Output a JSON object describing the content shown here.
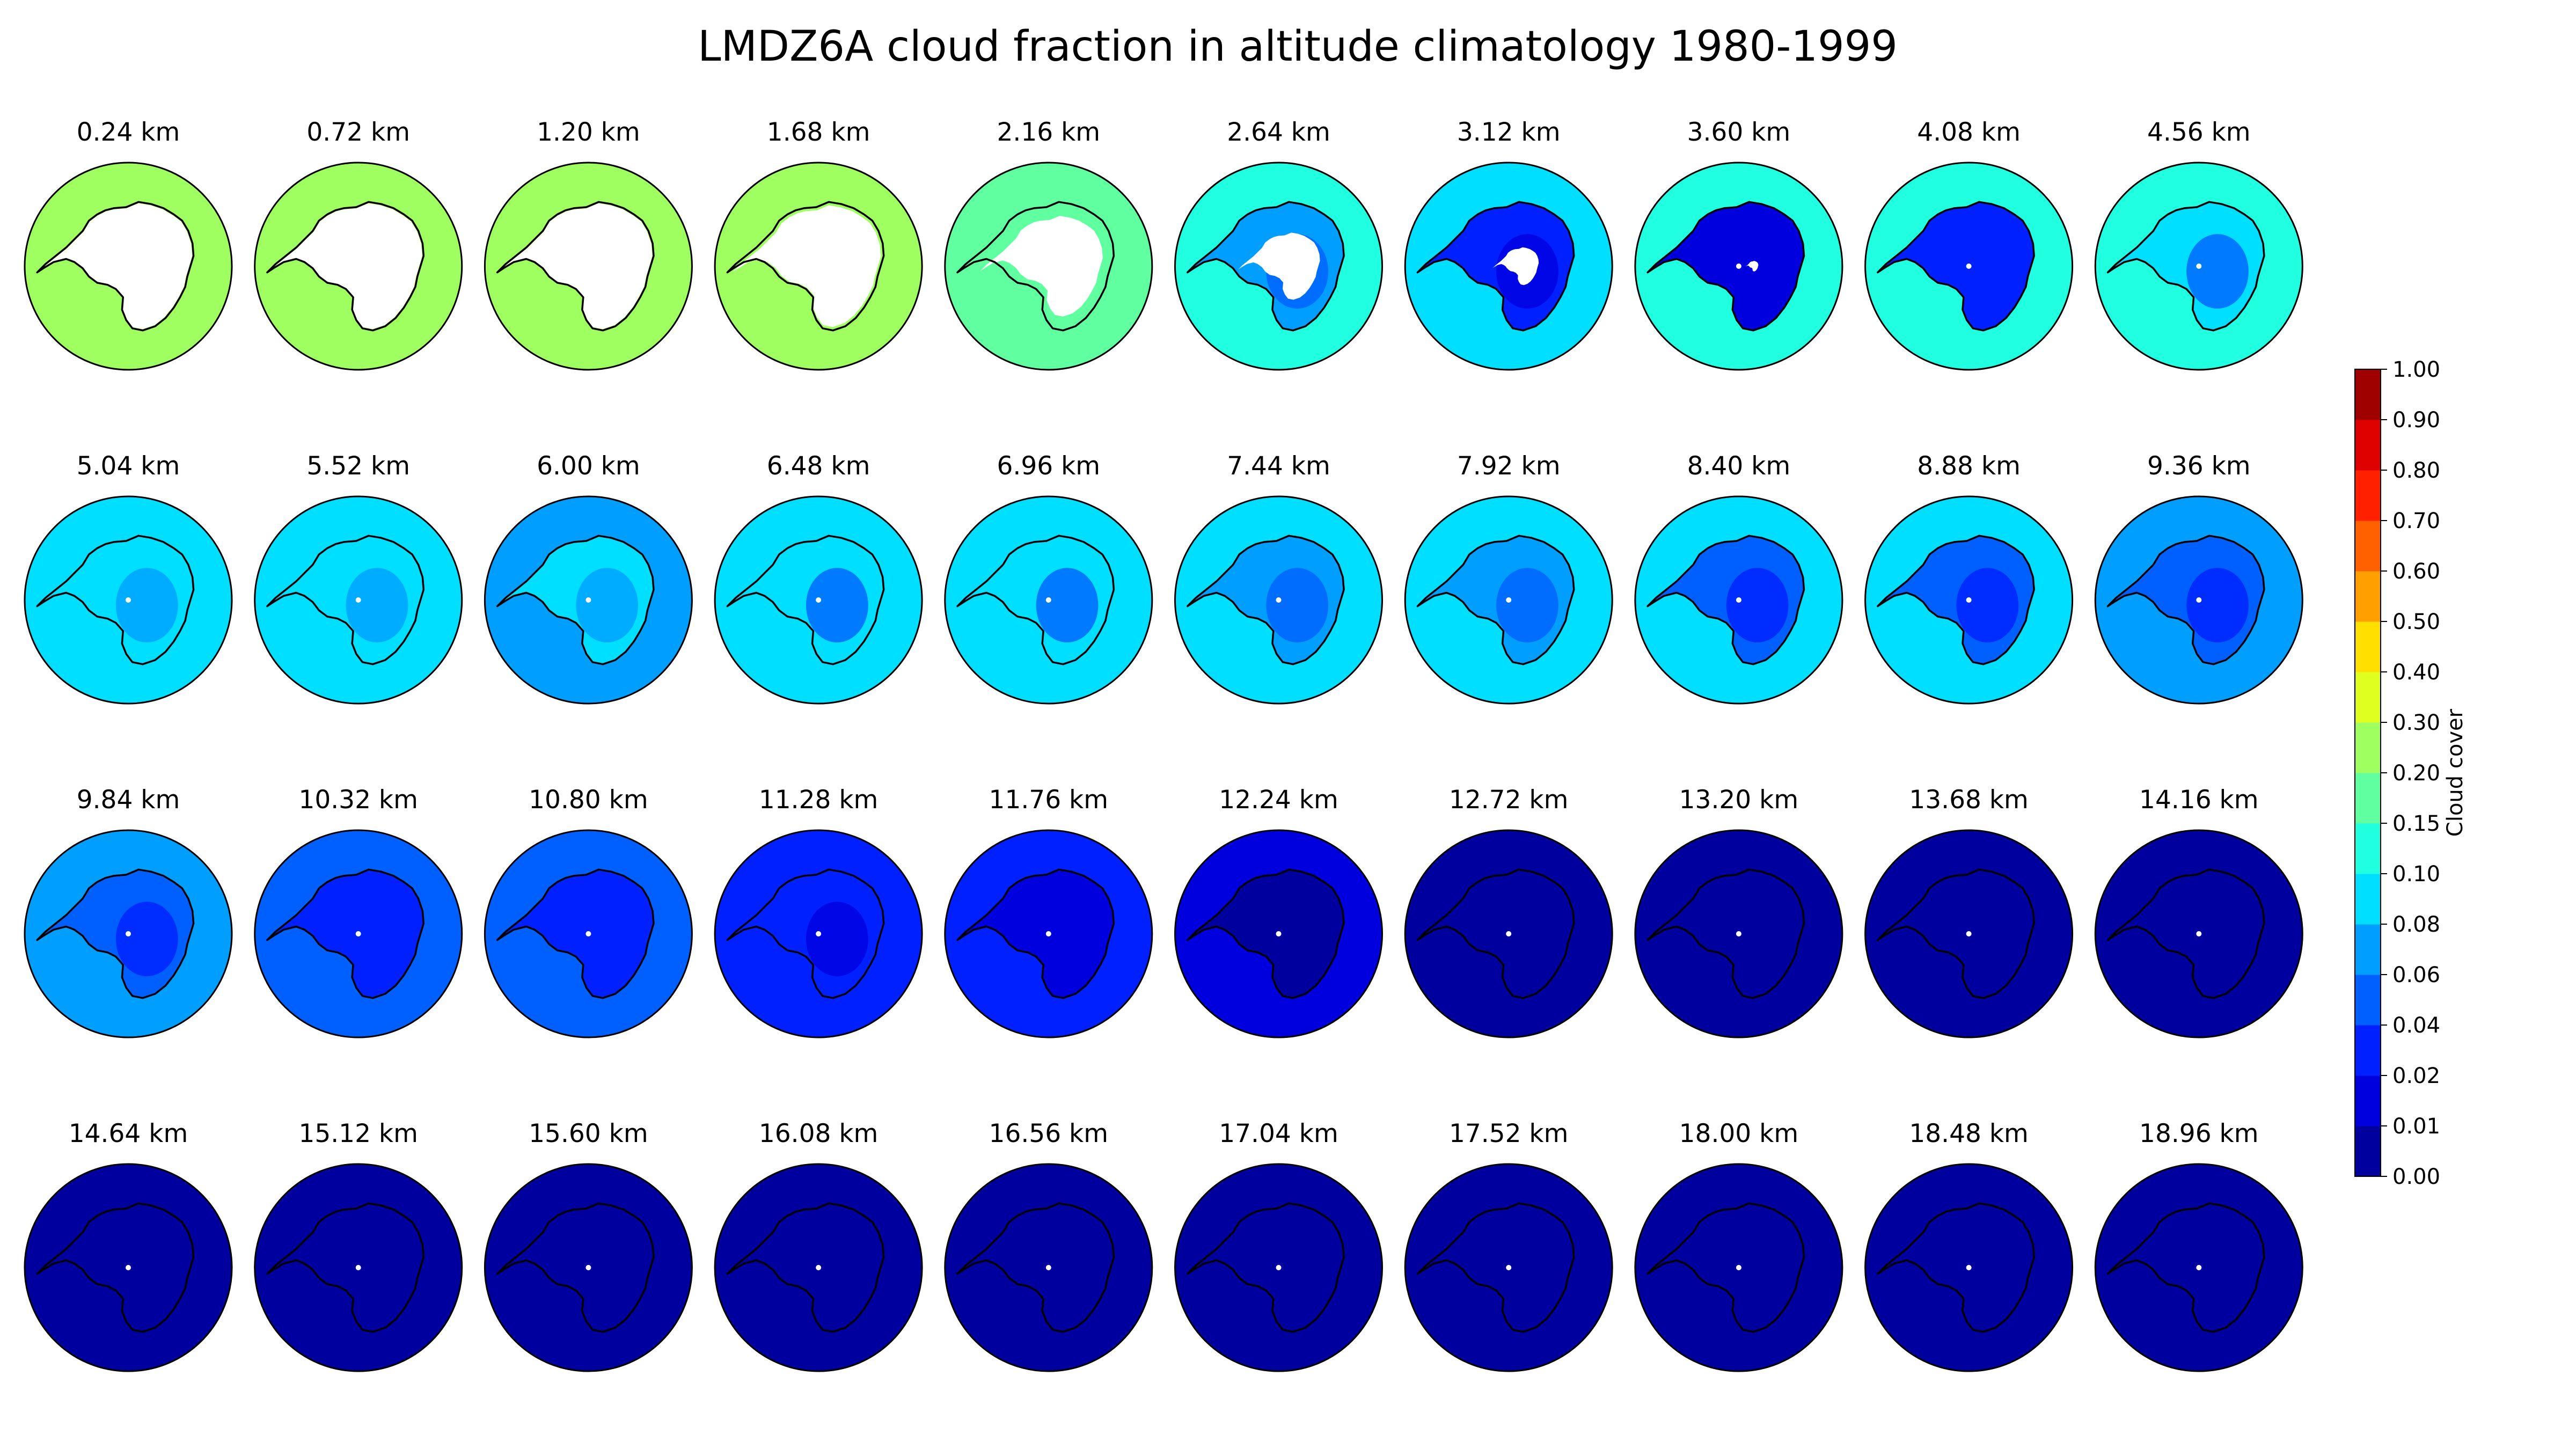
{
  "chart_data": {
    "type": "heatmap",
    "subtype": "south-polar-stereographic-map-panels",
    "title": "LMDZ6A cloud fraction in altitude climatology 1980-1999",
    "grid_rows": 4,
    "grid_cols": 10,
    "panels": [
      {
        "label": "0.24 km",
        "altitude_km": 0.24,
        "ocean_level": 0.22,
        "interior_level": null,
        "mask": 0.6
      },
      {
        "label": "0.72 km",
        "altitude_km": 0.72,
        "ocean_level": 0.28,
        "interior_level": null,
        "mask": 0.6
      },
      {
        "label": "1.20 km",
        "altitude_km": 1.2,
        "ocean_level": 0.27,
        "interior_level": null,
        "mask": 0.6
      },
      {
        "label": "1.68 km",
        "altitude_km": 1.68,
        "ocean_level": 0.25,
        "interior_level": null,
        "mask": 0.58
      },
      {
        "label": "2.16 km",
        "altitude_km": 2.16,
        "ocean_level": 0.18,
        "interior_level": null,
        "mask": 0.48
      },
      {
        "label": "2.64 km",
        "altitude_km": 2.64,
        "ocean_level": 0.11,
        "interior_level": 0.06,
        "mask": 0.32
      },
      {
        "label": "3.12 km",
        "altitude_km": 3.12,
        "ocean_level": 0.09,
        "interior_level": 0.02,
        "mask": 0.18
      },
      {
        "label": "3.60 km",
        "altitude_km": 3.6,
        "ocean_level": 0.1,
        "interior_level": 0.015,
        "mask": 0.05
      },
      {
        "label": "4.08 km",
        "altitude_km": 4.08,
        "ocean_level": 0.1,
        "interior_level": 0.03,
        "mask": 0
      },
      {
        "label": "4.56 km",
        "altitude_km": 4.56,
        "ocean_level": 0.1,
        "interior_level": 0.08,
        "mask": 0
      },
      {
        "label": "5.04 km",
        "altitude_km": 5.04,
        "ocean_level": 0.09,
        "interior_level": 0.09,
        "mask": 0
      },
      {
        "label": "5.52 km",
        "altitude_km": 5.52,
        "ocean_level": 0.08,
        "interior_level": 0.09,
        "mask": 0
      },
      {
        "label": "6.00 km",
        "altitude_km": 6.0,
        "ocean_level": 0.075,
        "interior_level": 0.09,
        "mask": 0
      },
      {
        "label": "6.48 km",
        "altitude_km": 6.48,
        "ocean_level": 0.08,
        "interior_level": 0.08,
        "mask": 0
      },
      {
        "label": "6.96 km",
        "altitude_km": 6.96,
        "ocean_level": 0.09,
        "interior_level": 0.08,
        "mask": 0
      },
      {
        "label": "7.44 km",
        "altitude_km": 7.44,
        "ocean_level": 0.09,
        "interior_level": 0.07,
        "mask": 0
      },
      {
        "label": "7.92 km",
        "altitude_km": 7.92,
        "ocean_level": 0.09,
        "interior_level": 0.06,
        "mask": 0
      },
      {
        "label": "8.40 km",
        "altitude_km": 8.4,
        "ocean_level": 0.085,
        "interior_level": 0.05,
        "mask": 0
      },
      {
        "label": "8.88 km",
        "altitude_km": 8.88,
        "ocean_level": 0.08,
        "interior_level": 0.045,
        "mask": 0
      },
      {
        "label": "9.36 km",
        "altitude_km": 9.36,
        "ocean_level": 0.07,
        "interior_level": 0.045,
        "mask": 0
      },
      {
        "label": "9.84 km",
        "altitude_km": 9.84,
        "ocean_level": 0.065,
        "interior_level": 0.04,
        "mask": 0
      },
      {
        "label": "10.32 km",
        "altitude_km": 10.32,
        "ocean_level": 0.05,
        "interior_level": 0.035,
        "mask": 0
      },
      {
        "label": "10.80 km",
        "altitude_km": 10.8,
        "ocean_level": 0.045,
        "interior_level": 0.03,
        "mask": 0
      },
      {
        "label": "11.28 km",
        "altitude_km": 11.28,
        "ocean_level": 0.035,
        "interior_level": 0.025,
        "mask": 0
      },
      {
        "label": "11.76 km",
        "altitude_km": 11.76,
        "ocean_level": 0.03,
        "interior_level": 0.015,
        "mask": 0
      },
      {
        "label": "12.24 km",
        "altitude_km": 12.24,
        "ocean_level": 0.015,
        "interior_level": 0.008,
        "mask": 0
      },
      {
        "label": "12.72 km",
        "altitude_km": 12.72,
        "ocean_level": 0.005,
        "interior_level": 0.005,
        "mask": 0
      },
      {
        "label": "13.20 km",
        "altitude_km": 13.2,
        "ocean_level": 0.005,
        "interior_level": 0.005,
        "mask": 0
      },
      {
        "label": "13.68 km",
        "altitude_km": 13.68,
        "ocean_level": 0.004,
        "interior_level": 0.004,
        "mask": 0
      },
      {
        "label": "14.16 km",
        "altitude_km": 14.16,
        "ocean_level": 0.004,
        "interior_level": 0.004,
        "mask": 0
      },
      {
        "label": "14.64 km",
        "altitude_km": 14.64,
        "ocean_level": 0.003,
        "interior_level": 0.003,
        "mask": 0
      },
      {
        "label": "15.12 km",
        "altitude_km": 15.12,
        "ocean_level": 0.003,
        "interior_level": 0.003,
        "mask": 0
      },
      {
        "label": "15.60 km",
        "altitude_km": 15.6,
        "ocean_level": 0.003,
        "interior_level": 0.003,
        "mask": 0
      },
      {
        "label": "16.08 km",
        "altitude_km": 16.08,
        "ocean_level": 0.003,
        "interior_level": 0.003,
        "mask": 0
      },
      {
        "label": "16.56 km",
        "altitude_km": 16.56,
        "ocean_level": 0.002,
        "interior_level": 0.002,
        "mask": 0
      },
      {
        "label": "17.04 km",
        "altitude_km": 17.04,
        "ocean_level": 0.002,
        "interior_level": 0.002,
        "mask": 0
      },
      {
        "label": "17.52 km",
        "altitude_km": 17.52,
        "ocean_level": 0.002,
        "interior_level": 0.002,
        "mask": 0
      },
      {
        "label": "18.00 km",
        "altitude_km": 18.0,
        "ocean_level": 0.002,
        "interior_level": 0.002,
        "mask": 0
      },
      {
        "label": "18.48 km",
        "altitude_km": 18.48,
        "ocean_level": 0.002,
        "interior_level": 0.002,
        "mask": 0
      },
      {
        "label": "18.96 km",
        "altitude_km": 18.96,
        "ocean_level": 0.002,
        "interior_level": 0.002,
        "mask": 0
      }
    ],
    "colorbar": {
      "label": "Cloud cover",
      "colormap": "jet",
      "levels": [
        "0.00",
        "0.01",
        "0.02",
        "0.04",
        "0.06",
        "0.08",
        "0.10",
        "0.15",
        "0.20",
        "0.30",
        "0.40",
        "0.50",
        "0.60",
        "0.70",
        "0.80",
        "0.90",
        "1.00"
      ],
      "range": [
        0,
        1
      ],
      "spacing": "uniform-per-level"
    }
  }
}
